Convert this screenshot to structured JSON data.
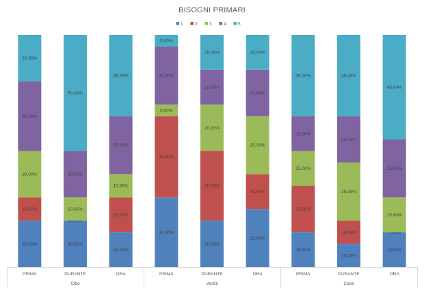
{
  "chart_data": {
    "type": "stacked-bar-100",
    "title": "BISOGNI PRIMARI",
    "xlabel": "",
    "ylabel": "",
    "ylim": [
      0,
      100
    ],
    "legend_position": "top",
    "grid": false,
    "series": [
      {
        "name": "1",
        "color": "#4f81bd"
      },
      {
        "name": "2",
        "color": "#c0504d"
      },
      {
        "name": "3",
        "color": "#9bbb59"
      },
      {
        "name": "4",
        "color": "#8064a2"
      },
      {
        "name": "5",
        "color": "#4bacc6"
      }
    ],
    "groups": [
      {
        "name": "Cibo",
        "bars": [
          {
            "category": "PRIMA",
            "values": [
              20,
              10,
              20,
              30,
              20
            ],
            "labels": [
              "20,00%",
              "10,00%",
              "20,00%",
              "30,00%",
              "20,00%"
            ]
          },
          {
            "category": "DURANTE",
            "values": [
              20,
              0,
              10,
              20,
              50
            ],
            "labels": [
              "20,00%",
              "0,00%",
              "10,00%",
              "20,00%",
              "50,00%"
            ]
          },
          {
            "category": "ORA",
            "values": [
              15,
              15,
              10,
              25,
              35
            ],
            "labels": [
              "15,00%",
              "15,00%",
              "10,00%",
              "25,00%",
              "35,00%"
            ]
          }
        ]
      },
      {
        "name": "Vestiti",
        "bars": [
          {
            "category": "PRIMA",
            "values": [
              30,
              35,
              5,
              25,
              5
            ],
            "labels": [
              "30,00%",
              "35,00%",
              "5,00%",
              "25,00%",
              "5,00%"
            ]
          },
          {
            "category": "DURANTE",
            "values": [
              20,
              30,
              20,
              15,
              15
            ],
            "labels": [
              "20,00%",
              "30,00%",
              "20,00%",
              "15,00%",
              "15,00%"
            ]
          },
          {
            "category": "ORA",
            "values": [
              25,
              15,
              25,
              20,
              15
            ],
            "labels": [
              "25,00%",
              "15,00%",
              "25,00%",
              "20,00%",
              "15,00%"
            ]
          }
        ]
      },
      {
        "name": "Casa",
        "bars": [
          {
            "category": "PRIMA",
            "values": [
              15,
              20,
              15,
              15,
              35
            ],
            "labels": [
              "15,00%",
              "20,00%",
              "15,00%",
              "15,00%",
              "35,00%"
            ]
          },
          {
            "category": "DURANTE",
            "values": [
              10,
              10,
              25,
              20,
              35
            ],
            "labels": [
              "10,00%",
              "10,00%",
              "25,00%",
              "20,00%",
              "35,00%"
            ]
          },
          {
            "category": "ORA",
            "values": [
              15,
              0,
              15,
              25,
              45
            ],
            "labels": [
              "15,00%",
              "0,00%",
              "15,00%",
              "25,00%",
              "45,00%"
            ]
          }
        ]
      }
    ]
  }
}
